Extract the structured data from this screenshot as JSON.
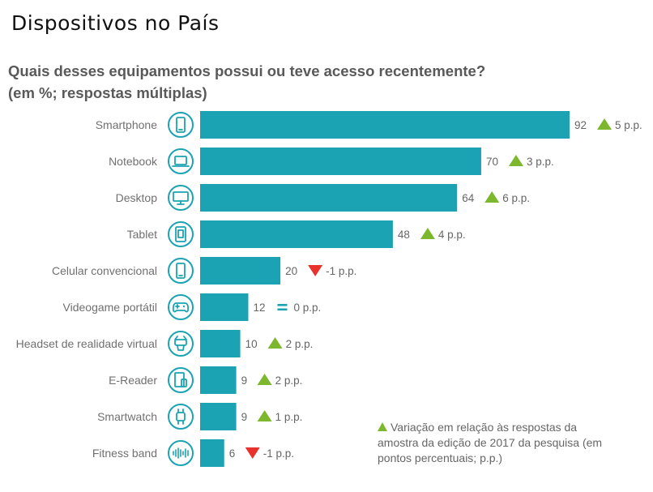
{
  "page": {
    "title": "Dispositivos no País",
    "question": "Quais desses equipamentos possui ou teve acesso recentemente?",
    "subtitle": "(em %; respostas múltiplas)"
  },
  "legend": {
    "note": "Variação em relação às respostas da amostra da edição de 2017 da pesquisa (em pontos percentuais; p.p.)"
  },
  "colors": {
    "bar": "#1ba3b3",
    "up": "#7cb72e",
    "down": "#e8322b",
    "equal": "#1ba3b3",
    "icon": "#1ba3b3"
  },
  "chart_data": {
    "type": "bar",
    "orientation": "horizontal",
    "title": "Quais desses equipamentos possui ou teve acesso recentemente?",
    "subtitle": "(em %; respostas múltiplas)",
    "xlim": [
      0,
      100
    ],
    "grid": false,
    "categories": [
      "Smartphone",
      "Notebook",
      "Desktop",
      "Tablet",
      "Celular convencional",
      "Videogame portátil",
      "Headset de realidade virtual",
      "E-Reader",
      "Smartwatch",
      "Fitness band"
    ],
    "values": [
      92,
      70,
      64,
      48,
      20,
      12,
      10,
      9,
      9,
      6
    ],
    "value_labels": [
      "92",
      "70",
      "64",
      "48",
      "20",
      "12",
      "10",
      "9",
      "9",
      "6"
    ],
    "variation": [
      5,
      3,
      6,
      4,
      -1,
      0,
      2,
      2,
      1,
      -1
    ],
    "variation_labels": [
      "5 p.p.",
      "3 p.p.",
      "6 p.p.",
      "4 p.p.",
      "-1 p.p.",
      "0 p.p.",
      "2 p.p.",
      "2 p.p.",
      "1 p.p.",
      "-1 p.p."
    ],
    "icons": [
      "smartphone-icon",
      "laptop-icon",
      "desktop-icon",
      "tablet-icon",
      "phone-icon",
      "gamepad-icon",
      "vr-headset-icon",
      "ereader-icon",
      "smartwatch-icon",
      "fitness-band-icon"
    ]
  }
}
